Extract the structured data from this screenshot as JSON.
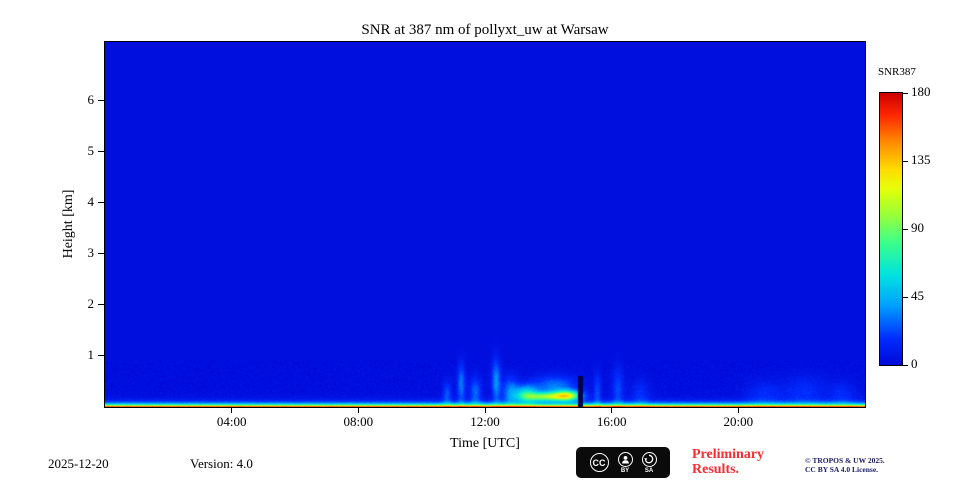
{
  "chart_data": {
    "type": "heatmap",
    "title": "SNR at 387 nm of pollyxt_uw at Warsaw",
    "xlabel": "Time [UTC]",
    "ylabel": "Height [km]",
    "x_range_hours": [
      0,
      24
    ],
    "y_range_km": [
      0,
      7.15
    ],
    "x_ticks": [
      {
        "hours": 4,
        "label": "04:00"
      },
      {
        "hours": 8,
        "label": "08:00"
      },
      {
        "hours": 12,
        "label": "12:00"
      },
      {
        "hours": 16,
        "label": "16:00"
      },
      {
        "hours": 20,
        "label": "20:00"
      }
    ],
    "y_ticks": [
      {
        "km": 1,
        "label": "1"
      },
      {
        "km": 2,
        "label": "2"
      },
      {
        "km": 3,
        "label": "3"
      },
      {
        "km": 4,
        "label": "4"
      },
      {
        "km": 5,
        "label": "5"
      },
      {
        "km": 6,
        "label": "6"
      }
    ],
    "colorbar": {
      "label": "SNR387",
      "range": [
        0,
        180
      ],
      "ticks": [
        {
          "value": 0,
          "label": "0"
        },
        {
          "value": 45,
          "label": "45"
        },
        {
          "value": 90,
          "label": "90"
        },
        {
          "value": 135,
          "label": "135"
        },
        {
          "value": 180,
          "label": "180"
        }
      ],
      "colormap": "jet-like",
      "stops": [
        [
          0.0,
          [
            0,
            8,
            215
          ]
        ],
        [
          0.1,
          [
            0,
            45,
            255
          ]
        ],
        [
          0.22,
          [
            0,
            160,
            255
          ]
        ],
        [
          0.33,
          [
            0,
            225,
            225
          ]
        ],
        [
          0.45,
          [
            60,
            255,
            140
          ]
        ],
        [
          0.55,
          [
            150,
            255,
            60
          ]
        ],
        [
          0.65,
          [
            230,
            255,
            10
          ]
        ],
        [
          0.72,
          [
            255,
            220,
            0
          ]
        ],
        [
          0.82,
          [
            255,
            140,
            0
          ]
        ],
        [
          0.92,
          [
            255,
            40,
            0
          ]
        ],
        [
          1.0,
          [
            205,
            0,
            0
          ]
        ]
      ]
    },
    "background_value": 3,
    "surface_layer": {
      "peak_value": 190,
      "scale_height_km": 0.045,
      "description": "strong near-ground SNR band (red at surface fading through yellow/green/cyan to blue by ~0.2 km) across the whole day"
    },
    "plumes": [
      {
        "t": 10.8,
        "z": 0.25,
        "st": 0.1,
        "sz": 0.18,
        "amp": 22
      },
      {
        "t": 11.25,
        "z": 0.45,
        "st": 0.09,
        "sz": 0.28,
        "amp": 30
      },
      {
        "t": 11.7,
        "z": 0.3,
        "st": 0.13,
        "sz": 0.2,
        "amp": 26
      },
      {
        "t": 12.35,
        "z": 0.5,
        "st": 0.1,
        "sz": 0.3,
        "amp": 34
      },
      {
        "t": 12.8,
        "z": 0.3,
        "st": 0.18,
        "sz": 0.2,
        "amp": 30
      },
      {
        "t": 13.3,
        "z": 0.25,
        "st": 0.25,
        "sz": 0.12,
        "amp": 55
      },
      {
        "t": 13.9,
        "z": 0.2,
        "st": 0.45,
        "sz": 0.06,
        "amp": 80
      },
      {
        "t": 14.6,
        "z": 0.22,
        "st": 0.3,
        "sz": 0.07,
        "amp": 95
      },
      {
        "t": 14.2,
        "z": 0.4,
        "st": 0.5,
        "sz": 0.15,
        "amp": 30
      },
      {
        "t": 15.55,
        "z": 0.3,
        "st": 0.08,
        "sz": 0.25,
        "amp": 20
      },
      {
        "t": 16.2,
        "z": 0.35,
        "st": 0.13,
        "sz": 0.3,
        "amp": 20
      },
      {
        "t": 16.9,
        "z": 0.25,
        "st": 0.2,
        "sz": 0.2,
        "amp": 14
      },
      {
        "t": 20.8,
        "z": 0.25,
        "st": 0.4,
        "sz": 0.18,
        "amp": 13
      },
      {
        "t": 22.1,
        "z": 0.3,
        "st": 0.5,
        "sz": 0.22,
        "amp": 14
      },
      {
        "t": 23.3,
        "z": 0.25,
        "st": 0.3,
        "sz": 0.18,
        "amp": 12
      }
    ],
    "gaps": [
      {
        "t0": 14.95,
        "t1": 15.1,
        "z_top": 0.6
      }
    ]
  },
  "footer": {
    "date": "2025-12-20",
    "version": "Version: 4.0",
    "preliminary_line1": "Preliminary",
    "preliminary_line2": "Results.",
    "preliminary_color": "#f62d2d",
    "copyright_line1": "© TROPOS & UW 2025.",
    "copyright_line2": "CC BY SA 4.0 License.",
    "copyright_color": "#1b1b66",
    "cc_badge": {
      "cc_label": "CC",
      "by_label": "BY",
      "sa_label": "SA"
    }
  }
}
